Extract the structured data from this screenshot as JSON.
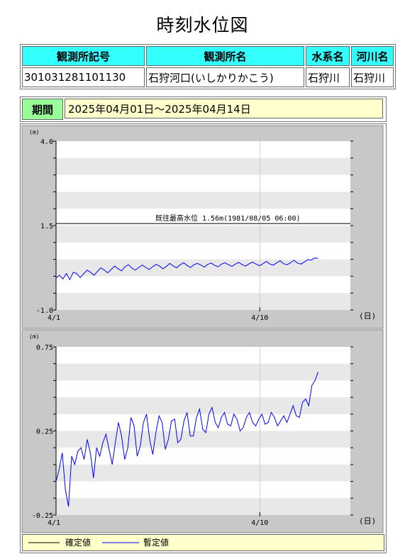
{
  "title": "時刻水位図",
  "table": {
    "headers": [
      "観測所記号",
      "観測所名",
      "水系名",
      "河川名"
    ],
    "row": [
      "301031281101130",
      "石狩河口(いしかりかこう)",
      "石狩川",
      "石狩川"
    ]
  },
  "period": {
    "label": "期間",
    "value": "2025年04月01日～2025年04月14日"
  },
  "colors": {
    "plot_bg": "#c8c8c8",
    "band": "#e8e8e8",
    "line": "#0000ff"
  },
  "chart_data": [
    {
      "type": "line",
      "unit_label": "(m)",
      "ylim": [
        -1.0,
        4.0
      ],
      "ytick_labels": [
        "4.0",
        "1.5",
        "-1.0"
      ],
      "x_tick_labels": [
        "4/1",
        "4/10"
      ],
      "x_unit_label": "(日)",
      "reference_line": {
        "value": 1.56,
        "label": "既往最高水位 1.56m(1981/08/05 06:00)"
      },
      "series": [
        {
          "values": [
            -0.05,
            0.03,
            -0.08,
            0.08,
            -0.1,
            0.12,
            0.08,
            -0.04,
            0.07,
            0.18,
            0.12,
            0.03,
            0.14,
            0.25,
            0.18,
            0.1,
            0.2,
            0.3,
            0.22,
            0.16,
            0.28,
            0.34,
            0.24,
            0.18,
            0.26,
            0.33,
            0.26,
            0.2,
            0.28,
            0.35,
            0.3,
            0.22,
            0.29,
            0.38,
            0.3,
            0.25,
            0.34,
            0.4,
            0.32,
            0.26,
            0.34,
            0.38,
            0.33,
            0.27,
            0.35,
            0.39,
            0.32,
            0.28,
            0.36,
            0.4,
            0.34,
            0.29,
            0.36,
            0.41,
            0.34,
            0.3,
            0.37,
            0.42,
            0.36,
            0.31,
            0.37,
            0.44,
            0.36,
            0.33,
            0.4,
            0.46,
            0.37,
            0.34,
            0.4,
            0.47,
            0.39,
            0.36,
            0.42,
            0.49,
            0.48,
            0.54,
            0.53
          ]
        }
      ]
    },
    {
      "type": "line",
      "unit_label": "(m)",
      "ylim": [
        -0.25,
        0.75
      ],
      "ytick_labels": [
        "0.75",
        "0.25",
        "-0.25"
      ],
      "x_tick_labels": [
        "4/1",
        "4/10"
      ],
      "x_unit_label": "(日)",
      "series": [
        {
          "values": [
            -0.05,
            0.02,
            0.12,
            -0.1,
            -0.2,
            0.1,
            0.05,
            0.13,
            0.15,
            0.08,
            0.2,
            0.12,
            -0.03,
            0.15,
            0.1,
            0.18,
            0.23,
            0.14,
            0.05,
            0.18,
            0.3,
            0.22,
            0.08,
            0.15,
            0.33,
            0.28,
            0.1,
            0.16,
            0.3,
            0.35,
            0.2,
            0.11,
            0.24,
            0.34,
            0.3,
            0.14,
            0.2,
            0.31,
            0.32,
            0.18,
            0.2,
            0.31,
            0.36,
            0.22,
            0.22,
            0.33,
            0.38,
            0.26,
            0.24,
            0.35,
            0.39,
            0.3,
            0.27,
            0.33,
            0.36,
            0.29,
            0.28,
            0.35,
            0.32,
            0.25,
            0.27,
            0.33,
            0.36,
            0.3,
            0.28,
            0.32,
            0.35,
            0.29,
            0.3,
            0.36,
            0.33,
            0.28,
            0.31,
            0.34,
            0.3,
            0.35,
            0.4,
            0.34,
            0.33,
            0.42,
            0.44,
            0.4,
            0.52,
            0.55,
            0.6
          ]
        }
      ]
    }
  ],
  "legend": [
    {
      "label": "確定値",
      "color": "#000000"
    },
    {
      "label": "暫定値",
      "color": "#0000ff"
    }
  ]
}
